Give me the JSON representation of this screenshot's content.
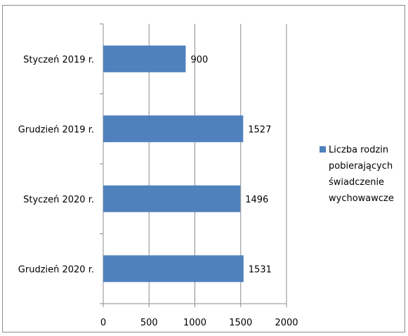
{
  "chart_data": {
    "type": "bar",
    "orientation": "horizontal",
    "categories": [
      "Styczeń 2019 r.",
      "Grudzień 2019 r.",
      "Styczeń 2020 r.",
      "Grudzień 2020 r."
    ],
    "series": [
      {
        "name": "Liczba rodzin pobierających świadczenie wychowawcze",
        "values": [
          900,
          1527,
          1496,
          1531
        ],
        "color": "#4f81bd"
      }
    ],
    "xlim": [
      0,
      2000
    ],
    "xticks": [
      0,
      500,
      1000,
      1500,
      2000
    ],
    "grid": "vertical",
    "legend_position": "right",
    "legend_lines": [
      "Liczba rodzin",
      "pobierających",
      "świadczenie",
      "wychowawcze"
    ],
    "title": "",
    "xlabel": "",
    "ylabel": ""
  }
}
